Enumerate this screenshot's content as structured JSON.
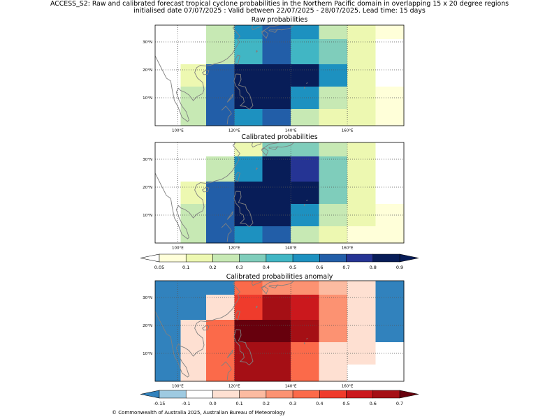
{
  "header": {
    "line1": "ACCESS_S2: Raw and calibrated forecast tropical cyclone probabilities in the Northern Pacific domain in overlapping 15 x 20 degree regions",
    "line2": "initialised date 07/07/2025 :  Valid between 22/07/2025 - 28/07/2025. Lead time: 15 days"
  },
  "footer": "© Commonwealth of Australia 2025, Australian Bureau of Meteorology",
  "colors": {
    "coast": "#808080",
    "grid": "#555555",
    "prob_bins": [
      "#ffffd9",
      "#edf8b1",
      "#c7e9b4",
      "#7fcdbb",
      "#41b6c4",
      "#1d91c0",
      "#225ea8",
      "#253494",
      "#081d58"
    ],
    "prob_under": "#ffffff",
    "anom_bins": [
      "#9ecae1",
      "#ffffff",
      "#fee0d2",
      "#fcbba1",
      "#fc9272",
      "#fb6a4a",
      "#ef3b2c",
      "#cb181d",
      "#a50f15"
    ],
    "anom_under": "#3182bd",
    "anom_over": "#67000d"
  },
  "chart_data": [
    {
      "type": "heatmap",
      "title": "Raw probabilities",
      "x_ticks": [
        "100°E",
        "120°E",
        "140°E",
        "160°E"
      ],
      "y_ticks": [
        "30°N",
        "20°N",
        "10°N"
      ],
      "xlim": [
        92,
        180
      ],
      "ylim": [
        0,
        36
      ],
      "x_edges": [
        92,
        101,
        110,
        120,
        130,
        140,
        150,
        160,
        170,
        180
      ],
      "y_edges": [
        0,
        6,
        14,
        22,
        31,
        36
      ],
      "values": [
        [
          0.0,
          0.0,
          0.2,
          0.5,
          0.6,
          0.5,
          0.2,
          0.1,
          0.05
        ],
        [
          0.0,
          0.0,
          0.2,
          0.4,
          0.6,
          0.4,
          0.3,
          0.1,
          0.0
        ],
        [
          0.0,
          0.1,
          0.6,
          0.9,
          0.9,
          0.8,
          0.5,
          0.1,
          0.0
        ],
        [
          0.0,
          0.2,
          0.6,
          0.8,
          0.8,
          0.5,
          0.2,
          0.1,
          0.05
        ],
        [
          0.0,
          0.2,
          0.6,
          0.5,
          0.6,
          0.2,
          0.1,
          0.1,
          0.05
        ]
      ]
    },
    {
      "type": "heatmap",
      "title": "Calibrated probabilities",
      "x_ticks": [
        "100°E",
        "120°E",
        "140°E",
        "160°E"
      ],
      "y_ticks": [
        "30°N",
        "20°N",
        "10°N"
      ],
      "xlim": [
        92,
        180
      ],
      "ylim": [
        0,
        36
      ],
      "x_edges": [
        92,
        101,
        110,
        120,
        130,
        140,
        150,
        160,
        170,
        180
      ],
      "y_edges": [
        0,
        6,
        14,
        22,
        31,
        36
      ],
      "values": [
        [
          0.0,
          0.0,
          0.0,
          0.1,
          0.3,
          0.3,
          0.2,
          0.1,
          0.0
        ],
        [
          0.0,
          0.0,
          0.2,
          0.5,
          0.8,
          0.7,
          0.3,
          0.1,
          0.0
        ],
        [
          0.0,
          0.1,
          0.6,
          0.9,
          0.9,
          0.8,
          0.3,
          0.1,
          0.0
        ],
        [
          0.0,
          0.2,
          0.6,
          0.8,
          0.8,
          0.5,
          0.2,
          0.1,
          0.05
        ],
        [
          0.0,
          0.2,
          0.6,
          0.5,
          0.6,
          0.2,
          0.1,
          0.05,
          0.05
        ]
      ]
    },
    {
      "type": "heatmap",
      "title": "Calibrated probabilities anomaly",
      "x_ticks": [
        "100°E",
        "120°E",
        "140°E",
        "160°E"
      ],
      "y_ticks": [
        "30°N",
        "20°N",
        "10°N"
      ],
      "xlim": [
        92,
        180
      ],
      "ylim": [
        0,
        36
      ],
      "x_edges": [
        92,
        101,
        110,
        120,
        130,
        140,
        150,
        160,
        170,
        180
      ],
      "y_edges": [
        0,
        6,
        14,
        22,
        31,
        36
      ],
      "values": [
        [
          -0.2,
          -0.2,
          -0.2,
          0.3,
          0.2,
          0.2,
          0.1,
          0.0,
          -0.2
        ],
        [
          -0.2,
          -0.2,
          0.0,
          0.4,
          0.6,
          0.5,
          0.2,
          0.0,
          -0.2
        ],
        [
          -0.2,
          0.0,
          0.3,
          0.8,
          0.8,
          0.6,
          0.2,
          0.0,
          -0.2
        ],
        [
          -0.2,
          0.05,
          0.3,
          0.6,
          0.6,
          0.3,
          0.05,
          0.0,
          -0.1
        ],
        [
          -0.2,
          0.05,
          0.3,
          0.6,
          0.6,
          0.3,
          0.05,
          -0.1,
          -0.1
        ]
      ]
    }
  ],
  "colorbars": [
    {
      "kind": "prob",
      "boundaries": [
        0.05,
        0.1,
        0.2,
        0.3,
        0.4,
        0.5,
        0.6,
        0.7,
        0.8,
        0.9
      ],
      "labels": [
        "0.05",
        "0.1",
        "0.2",
        "0.3",
        "0.4",
        "0.5",
        "0.6",
        "0.7",
        "0.8",
        "0.9"
      ]
    },
    {
      "kind": "anom",
      "boundaries": [
        -0.15,
        -0.1,
        0.0,
        0.1,
        0.2,
        0.3,
        0.4,
        0.5,
        0.6,
        0.7
      ],
      "labels": [
        "-0.15",
        "-0.1",
        "0.0",
        "0.1",
        "0.2",
        "0.3",
        "0.4",
        "0.5",
        "0.6",
        "0.7"
      ]
    }
  ]
}
